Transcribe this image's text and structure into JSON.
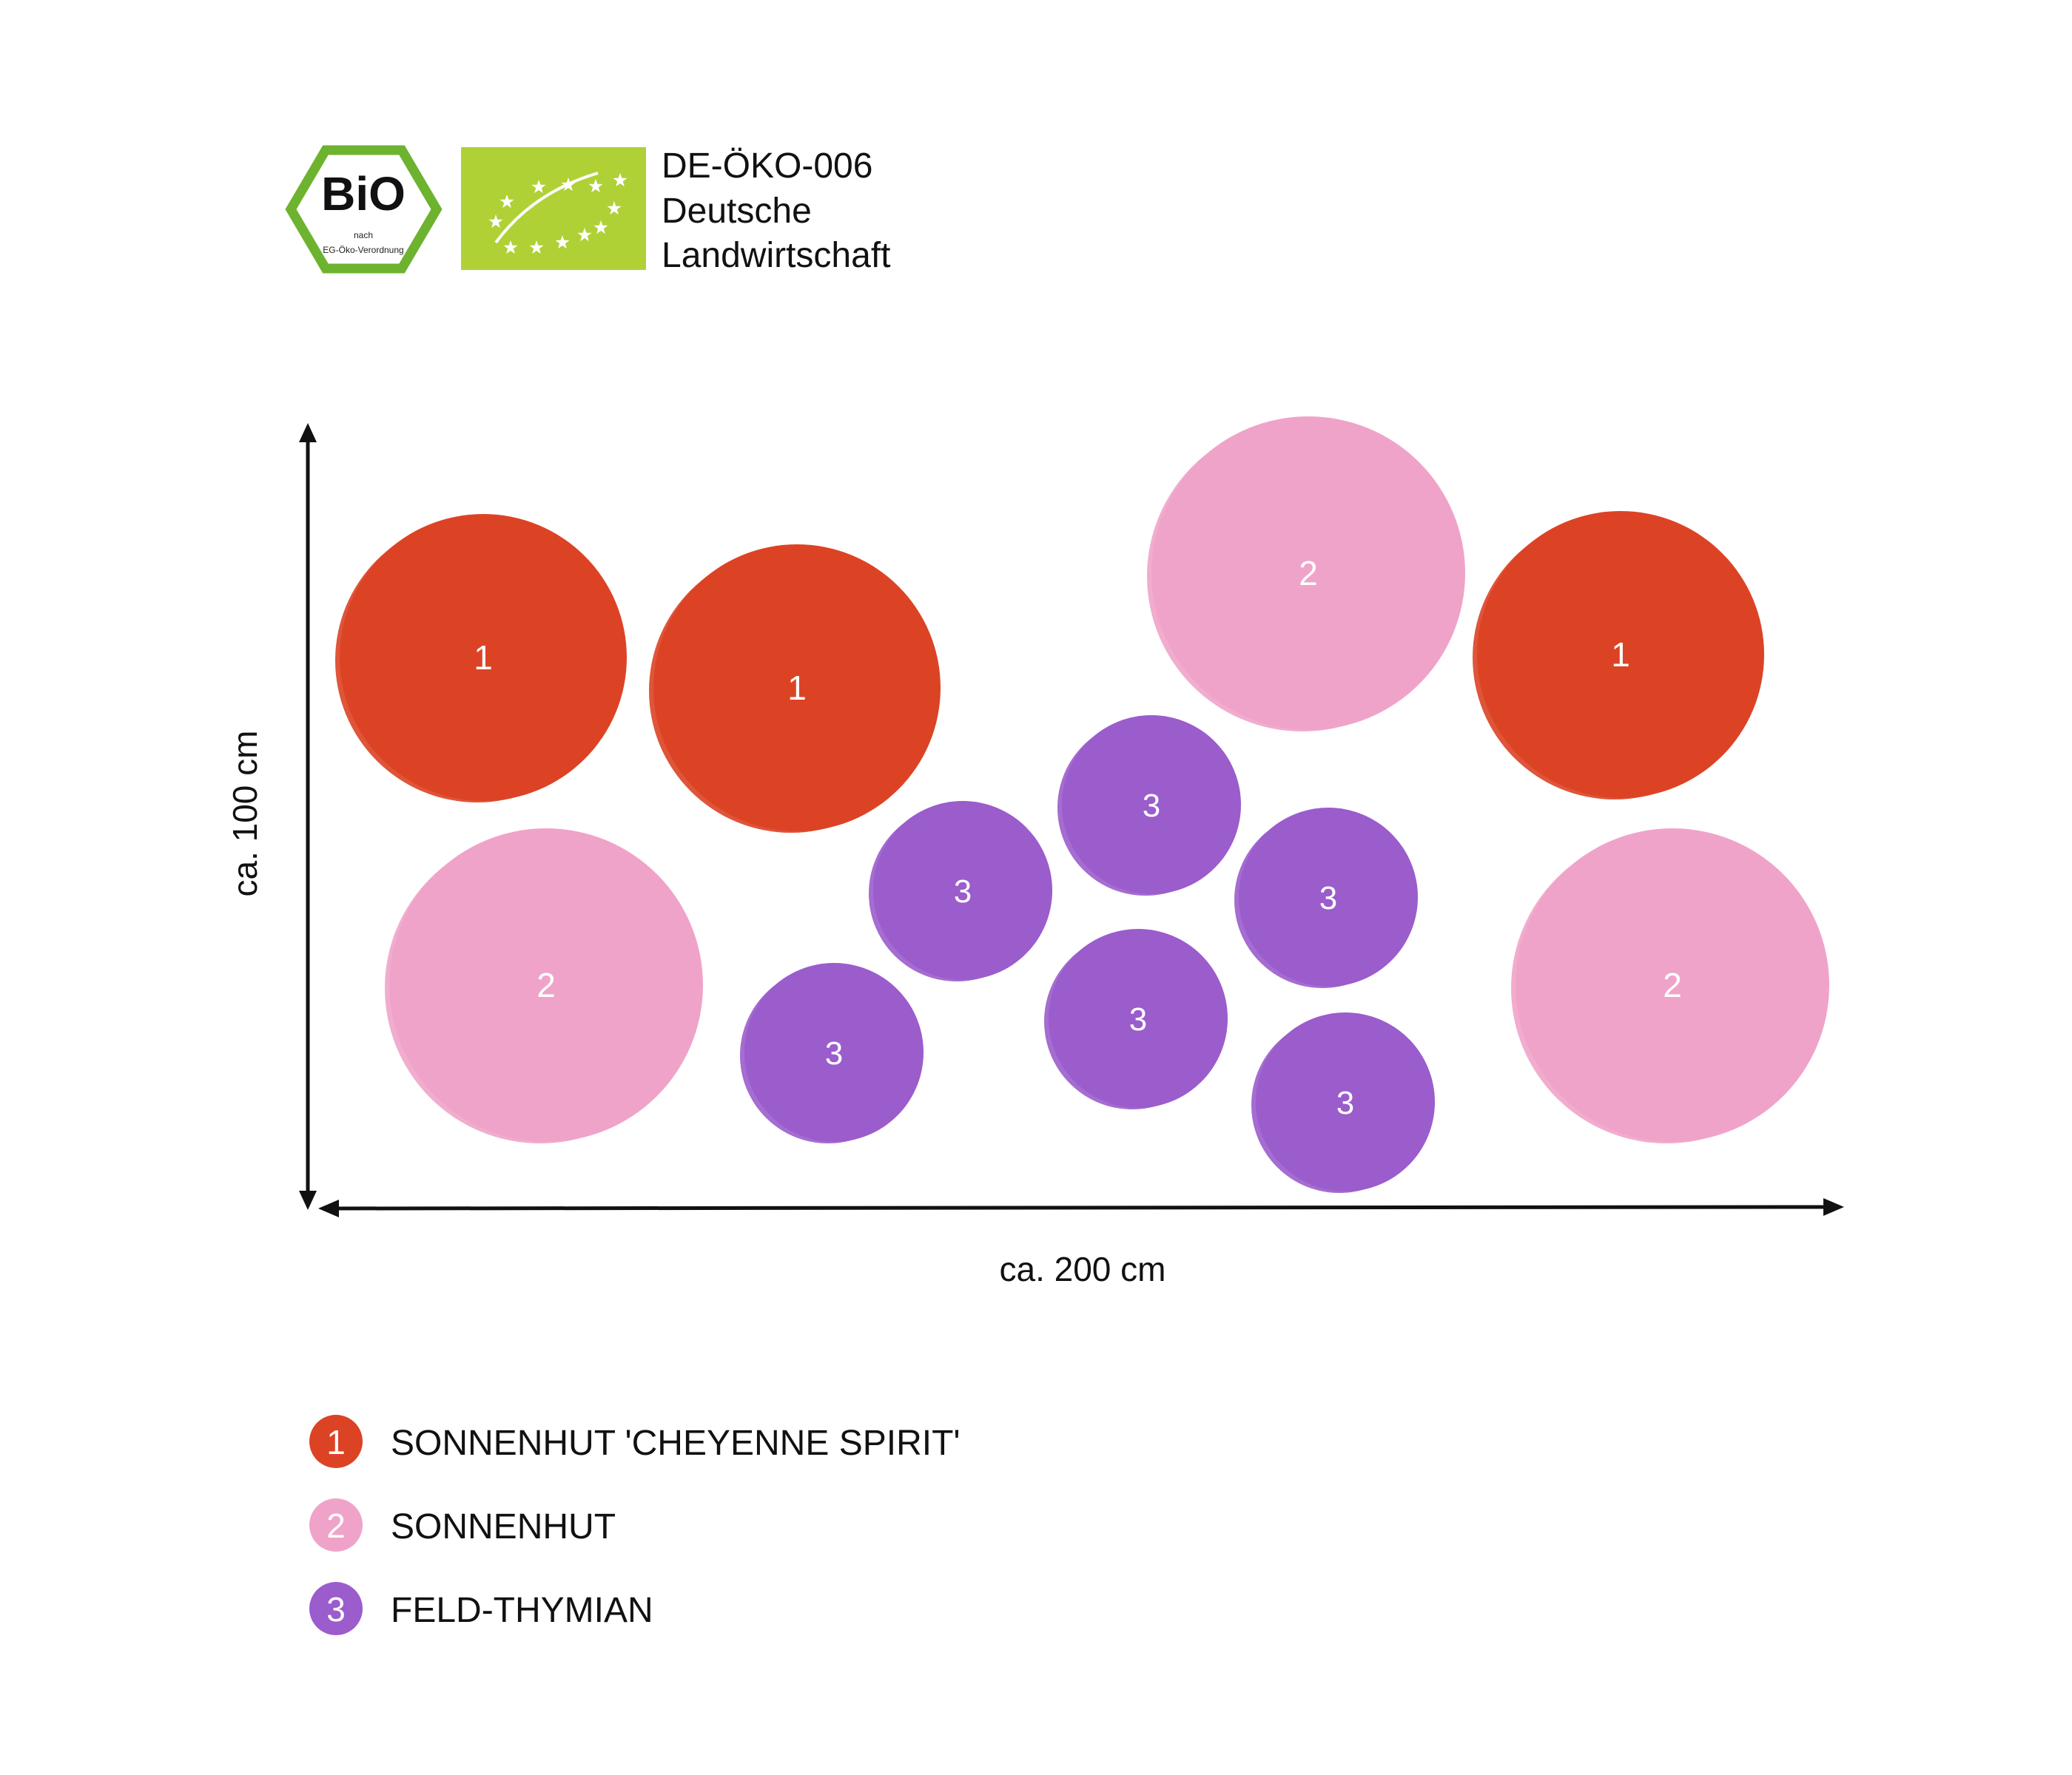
{
  "certification": {
    "bio_logo_text": "BiO",
    "bio_logo_subtext_1": "nach",
    "bio_logo_subtext_2": "EG-Öko-Verordnung",
    "code_lines": [
      "DE-ÖKO-006",
      "Deutsche",
      "Landwirtschaft"
    ]
  },
  "dimensions": {
    "height_label": "ca. 100 cm",
    "width_label": "ca. 200 cm"
  },
  "colors": {
    "plant_1": "#dc4325",
    "plant_2": "#f0a3c9",
    "plant_3": "#9b5ccc",
    "eu_green": "#afd136",
    "bio_green": "#6db32f"
  },
  "plants": [
    {
      "number": "1",
      "name": "SONNENHUT 'CHEYENNE SPIRIT'",
      "count": 3
    },
    {
      "number": "2",
      "name": "SONNENHUT",
      "count": 3
    },
    {
      "number": "3",
      "name": "FELD-THYMIAN",
      "count": 6
    }
  ],
  "layout_labels": [
    "1",
    "1",
    "1",
    "2",
    "2",
    "2",
    "3",
    "3",
    "3",
    "3",
    "3",
    "3"
  ]
}
